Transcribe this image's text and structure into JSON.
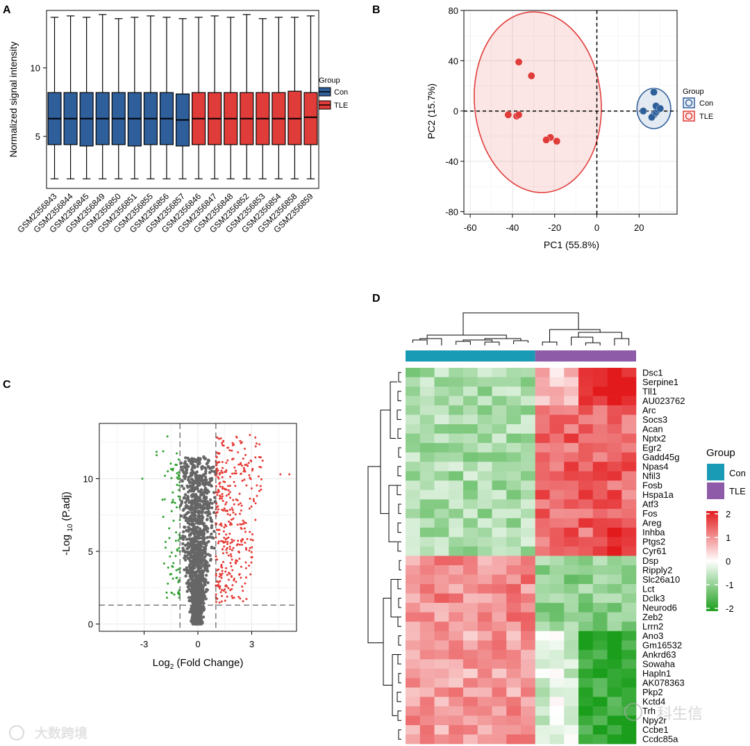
{
  "chart_data": [
    {
      "panel": "A",
      "type": "boxplot",
      "ylabel": "Normalized signal intensity",
      "xlabel": "",
      "ylim": [
        1.2,
        14.2
      ],
      "yticks": [
        5,
        10
      ],
      "legend": {
        "title": "Group",
        "items": [
          "Con",
          "TLE"
        ],
        "placement": "right"
      },
      "colors": {
        "Con": "#2e5f9a",
        "TLE": "#e03c39"
      },
      "categories": [
        "GSM2356843",
        "GSM2356844",
        "GSM2356845",
        "GSM2356849",
        "GSM2356850",
        "GSM2356851",
        "GSM2356855",
        "GSM2356856",
        "GSM2356857",
        "GSM2356846",
        "GSM2356847",
        "GSM2356848",
        "GSM2356852",
        "GSM2356853",
        "GSM2356854",
        "GSM2356858",
        "GSM2356859"
      ],
      "groups": [
        "Con",
        "Con",
        "Con",
        "Con",
        "Con",
        "Con",
        "Con",
        "Con",
        "Con",
        "TLE",
        "TLE",
        "TLE",
        "TLE",
        "TLE",
        "TLE",
        "TLE",
        "TLE"
      ],
      "series": [
        {
          "name": "GSM2356843",
          "min": 1.9,
          "q1": 4.4,
          "median": 6.3,
          "q3": 8.2,
          "max": 13.7
        },
        {
          "name": "GSM2356844",
          "min": 1.9,
          "q1": 4.4,
          "median": 6.3,
          "q3": 8.2,
          "max": 13.8
        },
        {
          "name": "GSM2356845",
          "min": 1.9,
          "q1": 4.3,
          "median": 6.3,
          "q3": 8.2,
          "max": 13.7
        },
        {
          "name": "GSM2356849",
          "min": 1.9,
          "q1": 4.4,
          "median": 6.3,
          "q3": 8.2,
          "max": 13.9
        },
        {
          "name": "GSM2356850",
          "min": 1.9,
          "q1": 4.4,
          "median": 6.3,
          "q3": 8.2,
          "max": 13.6
        },
        {
          "name": "GSM2356851",
          "min": 1.9,
          "q1": 4.3,
          "median": 6.3,
          "q3": 8.2,
          "max": 13.7
        },
        {
          "name": "GSM2356855",
          "min": 1.9,
          "q1": 4.4,
          "median": 6.3,
          "q3": 8.2,
          "max": 13.8
        },
        {
          "name": "GSM2356856",
          "min": 1.9,
          "q1": 4.4,
          "median": 6.3,
          "q3": 8.2,
          "max": 13.7
        },
        {
          "name": "GSM2356857",
          "min": 1.9,
          "q1": 4.3,
          "median": 6.2,
          "q3": 8.1,
          "max": 13.6
        },
        {
          "name": "GSM2356846",
          "min": 1.9,
          "q1": 4.4,
          "median": 6.3,
          "q3": 8.2,
          "max": 13.7
        },
        {
          "name": "GSM2356847",
          "min": 1.9,
          "q1": 4.4,
          "median": 6.3,
          "q3": 8.2,
          "max": 13.8
        },
        {
          "name": "GSM2356848",
          "min": 1.9,
          "q1": 4.4,
          "median": 6.3,
          "q3": 8.2,
          "max": 13.7
        },
        {
          "name": "GSM2356852",
          "min": 1.9,
          "q1": 4.4,
          "median": 6.3,
          "q3": 8.2,
          "max": 13.9
        },
        {
          "name": "GSM2356853",
          "min": 1.9,
          "q1": 4.4,
          "median": 6.3,
          "q3": 8.2,
          "max": 13.6
        },
        {
          "name": "GSM2356854",
          "min": 1.9,
          "q1": 4.4,
          "median": 6.3,
          "q3": 8.2,
          "max": 13.7
        },
        {
          "name": "GSM2356858",
          "min": 1.9,
          "q1": 4.4,
          "median": 6.3,
          "q3": 8.3,
          "max": 13.7
        },
        {
          "name": "GSM2356859",
          "min": 1.9,
          "q1": 4.4,
          "median": 6.4,
          "q3": 8.2,
          "max": 13.8
        }
      ]
    },
    {
      "panel": "B",
      "type": "scatter",
      "xlabel": "PC1 (55.8%)",
      "ylabel": "PC2 (15.7%)",
      "xlim": [
        -63,
        38
      ],
      "ylim": [
        -82,
        80
      ],
      "xticks": [
        -60,
        -40,
        -20,
        0,
        20
      ],
      "yticks": [
        -80,
        -40,
        0,
        40,
        80
      ],
      "grid": true,
      "legend": {
        "title": "Group",
        "items": [
          "Con",
          "TLE"
        ],
        "placement": "right"
      },
      "series": [
        {
          "name": "Con",
          "color": "#2e5f9a",
          "points": [
            [
              22,
              0
            ],
            [
              27,
              -3
            ],
            [
              28,
              -1
            ],
            [
              29,
              1
            ],
            [
              28,
              4
            ],
            [
              27,
              15
            ],
            [
              30,
              2
            ],
            [
              26,
              -5
            ]
          ]
        },
        {
          "name": "TLE",
          "color": "#e03c39",
          "points": [
            [
              -37,
              39
            ],
            [
              -31,
              28
            ],
            [
              -42,
              -3
            ],
            [
              -38,
              -4
            ],
            [
              -37,
              -3
            ],
            [
              -22,
              -21
            ],
            [
              -24,
              -23
            ],
            [
              -19,
              -24
            ]
          ]
        }
      ],
      "ellipses": [
        {
          "group": "TLE",
          "cx": -28,
          "cy": 7,
          "rx": 30,
          "ry": 72,
          "angle": -5
        },
        {
          "group": "Con",
          "cx": 27,
          "cy": 2,
          "rx": 8,
          "ry": 16
        }
      ]
    },
    {
      "panel": "C",
      "type": "scatter",
      "xlabel_main": "Log",
      "xlabel_sub": "2",
      "xlabel_tail": " (Fold Change)",
      "ylabel_head": "-Log ",
      "ylabel_sub": "10",
      "ylabel_tail": " (P.adj)",
      "xlim": [
        -5.5,
        5.5
      ],
      "ylim": [
        -0.5,
        13.8
      ],
      "xticks": [
        -3,
        0,
        3
      ],
      "yticks": [
        0,
        5,
        10
      ],
      "thresholds": {
        "log2fc": [
          -1,
          1
        ],
        "neg_log10_padj": 1.3
      },
      "colors": {
        "down": "#2ca02c",
        "ns": "#666666",
        "up": "#e53935"
      }
    },
    {
      "panel": "D",
      "type": "heatmap",
      "genes": [
        "Dsc1",
        "Serpine1",
        "Tll1",
        "AU023762",
        "Arc",
        "Socs3",
        "Acan",
        "Nptx2",
        "Egr2",
        "Gadd45g",
        "Npas4",
        "Nfil3",
        "Fosb",
        "Hspa1a",
        "Atf3",
        "Fos",
        "Areg",
        "Inhba",
        "Ptgs2",
        "Cyr61",
        "Dsp",
        "Ripply2",
        "Slc26a10",
        "Lct",
        "Dclk3",
        "Neurod6",
        "Zeb2",
        "Lrrn2",
        "Ano3",
        "Gm16532",
        "Ankrd63",
        "Sowaha",
        "Hapln1",
        "AK078363",
        "Pkp2",
        "Kctd4",
        "Trh",
        "Npy2r",
        "Ccbe1",
        "Ccdc85a"
      ],
      "columns": 16,
      "column_groups": [
        "Con",
        "Con",
        "Con",
        "Con",
        "Con",
        "Con",
        "Con",
        "Con",
        "Con",
        "TLE",
        "TLE",
        "TLE",
        "TLE",
        "TLE",
        "TLE",
        "TLE"
      ],
      "legend": {
        "title": "Group",
        "items": [
          "Con",
          "TLE"
        ],
        "colors": {
          "Con": "#1a9bb5",
          "TLE": "#8e5ba8"
        }
      },
      "colorbar": {
        "ticks": [
          2,
          1,
          0,
          -1,
          -2
        ],
        "high": "#e31a1c",
        "mid": "#ffffff",
        "low": "#1b9e1b"
      },
      "value_range": [
        -2,
        2
      ]
    }
  ],
  "panel_labels": [
    "A",
    "B",
    "C",
    "D"
  ],
  "watermarks": [
    "大数跨境",
    "科生信"
  ]
}
